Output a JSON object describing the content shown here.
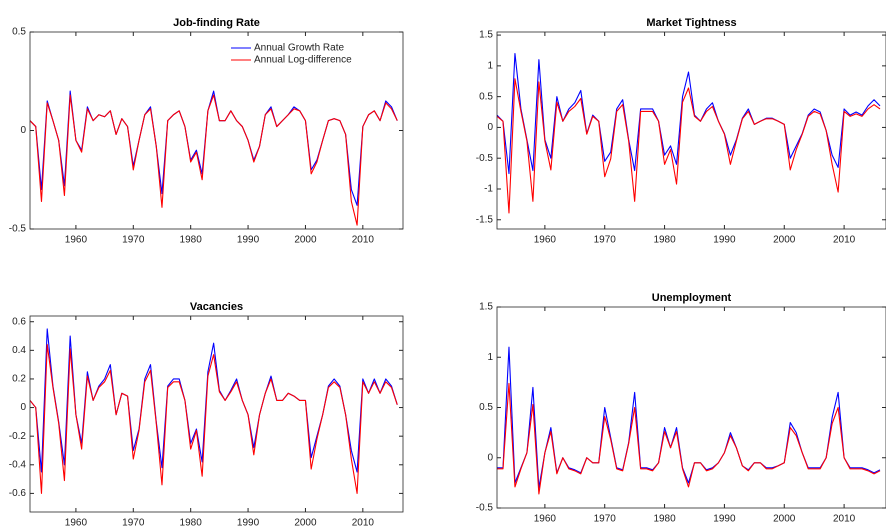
{
  "chart_data": [
    {
      "type": "line",
      "title": "Job-finding Rate",
      "x": [
        1952,
        1953,
        1954,
        1955,
        1956,
        1957,
        1958,
        1959,
        1960,
        1961,
        1962,
        1963,
        1964,
        1965,
        1966,
        1967,
        1968,
        1969,
        1970,
        1971,
        1972,
        1973,
        1974,
        1975,
        1976,
        1977,
        1978,
        1979,
        1980,
        1981,
        1982,
        1983,
        1984,
        1985,
        1986,
        1987,
        1988,
        1989,
        1990,
        1991,
        1992,
        1993,
        1994,
        1995,
        1996,
        1997,
        1998,
        1999,
        2000,
        2001,
        2002,
        2003,
        2004,
        2005,
        2006,
        2007,
        2008,
        2009,
        2010,
        2011,
        2012,
        2013,
        2014,
        2015,
        2016
      ],
      "series": [
        {
          "name": "Annual Growth Rate",
          "color": "#0000ff",
          "values": [
            0.05,
            0.02,
            -0.3,
            0.15,
            0.05,
            -0.05,
            -0.28,
            0.2,
            -0.05,
            -0.1,
            0.12,
            0.05,
            0.08,
            0.07,
            0.1,
            -0.02,
            0.06,
            0.02,
            -0.18,
            -0.05,
            0.08,
            0.12,
            -0.08,
            -0.32,
            0.05,
            0.08,
            0.1,
            0.02,
            -0.15,
            -0.1,
            -0.22,
            0.1,
            0.2,
            0.05,
            0.05,
            0.1,
            0.05,
            0.02,
            -0.05,
            -0.15,
            -0.08,
            0.08,
            0.12,
            0.02,
            0.05,
            0.08,
            0.12,
            0.1,
            0.05,
            -0.2,
            -0.15,
            -0.05,
            0.05,
            0.06,
            0.05,
            -0.02,
            -0.3,
            -0.38,
            0.02,
            0.08,
            0.1,
            0.05,
            0.15,
            0.12,
            0.05
          ]
        },
        {
          "name": "Annual Log-difference",
          "color": "#ff0000",
          "values": [
            0.05,
            0.02,
            -0.36,
            0.14,
            0.05,
            -0.05,
            -0.33,
            0.18,
            -0.05,
            -0.11,
            0.11,
            0.05,
            0.08,
            0.07,
            0.1,
            -0.02,
            0.06,
            0.02,
            -0.2,
            -0.05,
            0.08,
            0.11,
            -0.08,
            -0.39,
            0.05,
            0.08,
            0.1,
            0.02,
            -0.16,
            -0.11,
            -0.25,
            0.1,
            0.18,
            0.05,
            0.05,
            0.1,
            0.05,
            0.02,
            -0.05,
            -0.16,
            -0.08,
            0.08,
            0.11,
            0.02,
            0.05,
            0.08,
            0.11,
            0.1,
            0.05,
            -0.22,
            -0.16,
            -0.05,
            0.05,
            0.06,
            0.05,
            -0.02,
            -0.36,
            -0.48,
            0.02,
            0.08,
            0.1,
            0.05,
            0.14,
            0.11,
            0.05
          ]
        }
      ],
      "xlim": [
        1952,
        2017
      ],
      "xticks": [
        1960,
        1970,
        1980,
        1990,
        2000,
        2010
      ],
      "ylim": [
        -0.5,
        0.5
      ],
      "yticks": [
        -0.5,
        0,
        0.5
      ],
      "legend": "top-right"
    },
    {
      "type": "line",
      "title": "Market Tightness",
      "x": [
        1952,
        1953,
        1954,
        1955,
        1956,
        1957,
        1958,
        1959,
        1960,
        1961,
        1962,
        1963,
        1964,
        1965,
        1966,
        1967,
        1968,
        1969,
        1970,
        1971,
        1972,
        1973,
        1974,
        1975,
        1976,
        1977,
        1978,
        1979,
        1980,
        1981,
        1982,
        1983,
        1984,
        1985,
        1986,
        1987,
        1988,
        1989,
        1990,
        1991,
        1992,
        1993,
        1994,
        1995,
        1996,
        1997,
        1998,
        1999,
        2000,
        2001,
        2002,
        2003,
        2004,
        2005,
        2006,
        2007,
        2008,
        2009,
        2010,
        2011,
        2012,
        2013,
        2014,
        2015,
        2016
      ],
      "series": [
        {
          "color": "#0000ff",
          "values": [
            0.2,
            0.1,
            -0.75,
            1.2,
            0.3,
            -0.2,
            -0.7,
            1.1,
            -0.2,
            -0.5,
            0.5,
            0.1,
            0.3,
            0.4,
            0.6,
            -0.1,
            0.2,
            0.1,
            -0.55,
            -0.4,
            0.3,
            0.45,
            -0.2,
            -0.7,
            0.3,
            0.3,
            0.3,
            0.1,
            -0.45,
            -0.3,
            -0.6,
            0.5,
            0.9,
            0.2,
            0.1,
            0.3,
            0.4,
            0.1,
            -0.1,
            -0.45,
            -0.2,
            0.15,
            0.3,
            0.05,
            0.1,
            0.15,
            0.15,
            0.1,
            0.05,
            -0.5,
            -0.3,
            -0.1,
            0.2,
            0.3,
            0.25,
            -0.05,
            -0.45,
            -0.65,
            0.3,
            0.2,
            0.25,
            0.2,
            0.35,
            0.45,
            0.35
          ]
        },
        {
          "color": "#ff0000",
          "values": [
            0.18,
            0.1,
            -1.39,
            0.79,
            0.26,
            -0.22,
            -1.2,
            0.74,
            -0.22,
            -0.69,
            0.41,
            0.1,
            0.26,
            0.34,
            0.47,
            -0.11,
            0.18,
            0.1,
            -0.8,
            -0.51,
            0.26,
            0.37,
            -0.22,
            -1.2,
            0.26,
            0.26,
            0.26,
            0.1,
            -0.6,
            -0.36,
            -0.92,
            0.41,
            0.64,
            0.18,
            0.1,
            0.26,
            0.34,
            0.1,
            -0.11,
            -0.6,
            -0.22,
            0.14,
            0.26,
            0.05,
            0.1,
            0.14,
            0.14,
            0.1,
            0.05,
            -0.69,
            -0.36,
            -0.11,
            0.18,
            0.26,
            0.22,
            -0.05,
            -0.6,
            -1.05,
            0.26,
            0.18,
            0.22,
            0.18,
            0.3,
            0.37,
            0.3
          ]
        }
      ],
      "xlim": [
        1952,
        2017
      ],
      "xticks": [
        1960,
        1970,
        1980,
        1990,
        2000,
        2010
      ],
      "ylim": [
        -1.65,
        1.55
      ],
      "yticks": [
        -1.5,
        -1,
        -0.5,
        0,
        0.5,
        1,
        1.5
      ]
    },
    {
      "type": "line",
      "title": "Vacancies",
      "x": [
        1952,
        1953,
        1954,
        1955,
        1956,
        1957,
        1958,
        1959,
        1960,
        1961,
        1962,
        1963,
        1964,
        1965,
        1966,
        1967,
        1968,
        1969,
        1970,
        1971,
        1972,
        1973,
        1974,
        1975,
        1976,
        1977,
        1978,
        1979,
        1980,
        1981,
        1982,
        1983,
        1984,
        1985,
        1986,
        1987,
        1988,
        1989,
        1990,
        1991,
        1992,
        1993,
        1994,
        1995,
        1996,
        1997,
        1998,
        1999,
        2000,
        2001,
        2002,
        2003,
        2004,
        2005,
        2006,
        2007,
        2008,
        2009,
        2010,
        2011,
        2012,
        2013,
        2014,
        2015,
        2016
      ],
      "series": [
        {
          "color": "#0000ff",
          "values": [
            0.05,
            0,
            -0.45,
            0.55,
            0.15,
            -0.1,
            -0.4,
            0.5,
            -0.05,
            -0.25,
            0.25,
            0.05,
            0.15,
            0.2,
            0.3,
            -0.05,
            0.1,
            0.08,
            -0.3,
            -0.15,
            0.2,
            0.3,
            -0.1,
            -0.42,
            0.15,
            0.2,
            0.2,
            0.05,
            -0.25,
            -0.15,
            -0.38,
            0.25,
            0.45,
            0.12,
            0.05,
            0.12,
            0.2,
            0.05,
            -0.05,
            -0.28,
            -0.05,
            0.1,
            0.22,
            0.05,
            0.05,
            0.1,
            0.08,
            0.05,
            0.05,
            -0.35,
            -0.2,
            -0.05,
            0.15,
            0.2,
            0.15,
            -0.05,
            -0.3,
            -0.45,
            0.2,
            0.1,
            0.2,
            0.1,
            0.2,
            0.15,
            0.02
          ]
        },
        {
          "color": "#ff0000",
          "values": [
            0.05,
            0,
            -0.6,
            0.44,
            0.14,
            -0.11,
            -0.51,
            0.41,
            -0.05,
            -0.29,
            0.22,
            0.05,
            0.14,
            0.18,
            0.26,
            -0.05,
            0.1,
            0.08,
            -0.36,
            -0.16,
            0.18,
            0.26,
            -0.11,
            -0.54,
            0.14,
            0.18,
            0.18,
            0.05,
            -0.29,
            -0.16,
            -0.48,
            0.22,
            0.37,
            0.11,
            0.05,
            0.11,
            0.18,
            0.05,
            -0.05,
            -0.33,
            -0.05,
            0.1,
            0.2,
            0.05,
            0.05,
            0.1,
            0.08,
            0.05,
            0.05,
            -0.43,
            -0.22,
            -0.05,
            0.14,
            0.18,
            0.14,
            -0.05,
            -0.36,
            -0.6,
            0.18,
            0.1,
            0.18,
            0.1,
            0.18,
            0.14,
            0.02
          ]
        }
      ],
      "xlim": [
        1952,
        2017
      ],
      "xticks": [
        1960,
        1970,
        1980,
        1990,
        2000,
        2010
      ],
      "ylim": [
        -0.73,
        0.64
      ],
      "yticks": [
        -0.6,
        -0.4,
        -0.2,
        0,
        0.2,
        0.4,
        0.6
      ]
    },
    {
      "type": "line",
      "title": "Unemployment",
      "x": [
        1952,
        1953,
        1954,
        1955,
        1956,
        1957,
        1958,
        1959,
        1960,
        1961,
        1962,
        1963,
        1964,
        1965,
        1966,
        1967,
        1968,
        1969,
        1970,
        1971,
        1972,
        1973,
        1974,
        1975,
        1976,
        1977,
        1978,
        1979,
        1980,
        1981,
        1982,
        1983,
        1984,
        1985,
        1986,
        1987,
        1988,
        1989,
        1990,
        1991,
        1992,
        1993,
        1994,
        1995,
        1996,
        1997,
        1998,
        1999,
        2000,
        2001,
        2002,
        2003,
        2004,
        2005,
        2006,
        2007,
        2008,
        2009,
        2010,
        2011,
        2012,
        2013,
        2014,
        2015,
        2016
      ],
      "series": [
        {
          "color": "#0000ff",
          "values": [
            -0.1,
            -0.1,
            1.1,
            -0.25,
            -0.1,
            0.05,
            0.7,
            -0.3,
            0.05,
            0.3,
            -0.15,
            0,
            -0.1,
            -0.12,
            -0.15,
            0,
            -0.05,
            -0.05,
            0.5,
            0.2,
            -0.1,
            -0.12,
            0.15,
            0.65,
            -0.1,
            -0.1,
            -0.12,
            -0.05,
            0.3,
            0.1,
            0.3,
            -0.1,
            -0.25,
            -0.05,
            -0.05,
            -0.12,
            -0.1,
            -0.05,
            0.05,
            0.25,
            0.1,
            -0.08,
            -0.12,
            -0.05,
            -0.05,
            -0.1,
            -0.1,
            -0.08,
            -0.05,
            0.35,
            0.25,
            0.05,
            -0.1,
            -0.1,
            -0.1,
            0,
            0.4,
            0.65,
            0,
            -0.1,
            -0.1,
            -0.1,
            -0.12,
            -0.15,
            -0.12
          ]
        },
        {
          "color": "#ff0000",
          "values": [
            -0.11,
            -0.11,
            0.74,
            -0.29,
            -0.11,
            0.05,
            0.53,
            -0.36,
            0.05,
            0.26,
            -0.16,
            0,
            -0.11,
            -0.13,
            -0.16,
            0,
            -0.05,
            -0.05,
            0.41,
            0.18,
            -0.11,
            -0.13,
            0.14,
            0.5,
            -0.11,
            -0.11,
            -0.13,
            -0.05,
            0.26,
            0.1,
            0.26,
            -0.11,
            -0.29,
            -0.05,
            -0.05,
            -0.13,
            -0.11,
            -0.05,
            0.05,
            0.22,
            0.1,
            -0.08,
            -0.13,
            -0.05,
            -0.05,
            -0.11,
            -0.11,
            -0.08,
            -0.05,
            0.3,
            0.22,
            0.05,
            -0.11,
            -0.11,
            -0.11,
            0,
            0.34,
            0.5,
            0,
            -0.11,
            -0.11,
            -0.11,
            -0.13,
            -0.16,
            -0.13
          ]
        }
      ],
      "xlim": [
        1952,
        2017
      ],
      "xticks": [
        1960,
        1970,
        1980,
        1990,
        2000,
        2010
      ],
      "ylim": [
        -0.5,
        1.5
      ],
      "yticks": [
        -0.5,
        0,
        0.5,
        1,
        1.5
      ]
    }
  ]
}
